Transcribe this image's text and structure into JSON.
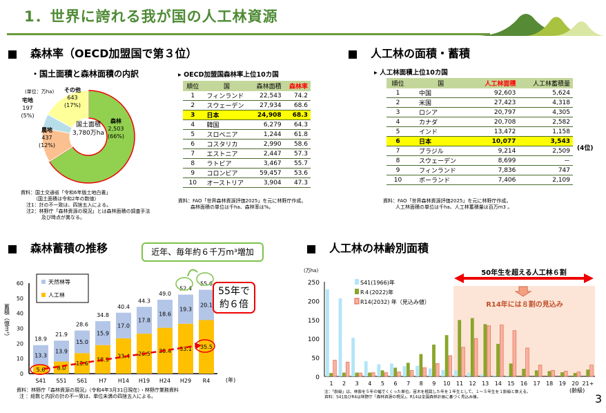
{
  "page": {
    "title": "1．世界に誇れる我が国の人工林資源",
    "page_number": "3"
  },
  "forest_rate": {
    "heading": "森林率（OECD加盟国で第３位）",
    "donut": {
      "subtitle": "・国土面積と森林面積の内訳",
      "unit": "(単位：万ha)",
      "center_label": "国土面積",
      "center_value": "3,780万ha",
      "segments": [
        {
          "name": "森林",
          "value": "2,503",
          "pct": "(66%)",
          "fraction": 0.66,
          "color": "#92d050"
        },
        {
          "name": "農地",
          "value": "437",
          "pct": "(12%)",
          "fraction": 0.12,
          "color": "#fac090"
        },
        {
          "name": "宅地",
          "value": "197",
          "pct": "(5%)",
          "fraction": 0.05,
          "color": "#b7dee8"
        },
        {
          "name": "その他",
          "value": "643",
          "pct": "(17%)",
          "fraction": 0.17,
          "color": "#ffff99"
        }
      ],
      "notes": [
        "資料：国土交通省「令和6年版土地白書」",
        "（国土面積は令和2年の数値）",
        "注1：計の不一致は、四捨五入による。",
        "注2：林野庁「森林資源の現況」とは森林面積の調査手法",
        "及び時点が異なる。"
      ]
    },
    "table": {
      "title": "OECD加盟国森林率上位10カ国",
      "headers": [
        "順位",
        "国",
        "森林面積",
        "森林率"
      ],
      "rows": [
        [
          "1",
          "フィンランド",
          "22,543",
          "74.2"
        ],
        [
          "2",
          "スウェーデン",
          "27,934",
          "68.6"
        ],
        [
          "3",
          "日本",
          "24,908",
          "68.3"
        ],
        [
          "4",
          "韓国",
          "6,279",
          "64.3"
        ],
        [
          "5",
          "スロベニア",
          "1,244",
          "61.8"
        ],
        [
          "6",
          "コスタリカ",
          "2,990",
          "58.6"
        ],
        [
          "7",
          "エストニア",
          "2,447",
          "57.3"
        ],
        [
          "8",
          "ラトビア",
          "3,467",
          "55.7"
        ],
        [
          "9",
          "コロンビア",
          "59,457",
          "53.6"
        ],
        [
          "10",
          "オーストリア",
          "3,904",
          "47.3"
        ]
      ],
      "highlight_rank": "3",
      "notes": [
        "資料：FAO「世界森林資源評価2025」を元に林野庁作成。",
        "森林面積の単位は千ha、森林率は%。"
      ]
    }
  },
  "plantation": {
    "heading": "人工林の面積・蓄積",
    "table": {
      "title": "人工林面積上位10カ国",
      "headers": [
        "順位",
        "国",
        "人工林面積",
        "人工林蓄積量"
      ],
      "rows": [
        [
          "1",
          "中国",
          "92,603",
          "5,624"
        ],
        [
          "2",
          "米国",
          "27,423",
          "4,318"
        ],
        [
          "3",
          "ロシア",
          "20,797",
          "4,305"
        ],
        [
          "4",
          "カナダ",
          "20,708",
          "2,582"
        ],
        [
          "5",
          "インド",
          "13,472",
          "1,158"
        ],
        [
          "6",
          "日本",
          "10,077",
          "3,543"
        ],
        [
          "7",
          "ブラジル",
          "9,214",
          "2,509"
        ],
        [
          "8",
          "スウェーデン",
          "8,699",
          "－"
        ],
        [
          "9",
          "フィンランド",
          "7,836",
          "747"
        ],
        [
          "10",
          "ポーランド",
          "7,406",
          "2,109"
        ]
      ],
      "highlight_rank": "6",
      "japan_rank_note": "(4位)",
      "notes": [
        "資料：FAO「世界森林資源評価2025」を元に林野庁作成。",
        "人工林面積の単位は千ha、人工林蓄積量は百万m3 。"
      ]
    }
  },
  "stock": {
    "heading": "森林蓄積の推移",
    "callout": "近年、毎年約６千万m³増加",
    "redbox": [
      "55年で",
      "約６倍"
    ],
    "notes": [
      "資料：林野庁「森林資源の現況」（令和4年3月31日現在）・林野庁業務資料",
      "注 ：総数と内訳の計の不一致は、単位未満の四捨五入による。"
    ]
  },
  "age": {
    "heading": "人工林の林齢別面積",
    "arrow_label": "50年生を超える人工林６割",
    "forecast_label": "R14年には８割の見込み",
    "notes": [
      "注：「齢級」は、林齢を５年の幅でくくった単位。苗木を植栽した年を１年生として、１～５年生を１齢級と数える。",
      "資料：S41及びR4は林野庁「森林資源の現況」、R14は全国森林計画に基づく見込み値。"
    ]
  },
  "chart_data": [
    {
      "type": "bar",
      "stacked": true,
      "title": "森林蓄積の推移",
      "ylabel": "蓄積（億m³）",
      "xlabel": "(年)",
      "ylim": [
        0,
        60
      ],
      "yticks": [
        "0",
        "10",
        "20",
        "30",
        "40",
        "50",
        "60"
      ],
      "categories": [
        "S41",
        "S51",
        "S61",
        "H7",
        "H14",
        "H19",
        "H24",
        "H29",
        "R4"
      ],
      "series": [
        {
          "name": "人工林",
          "color": "#ffc000",
          "values": [
            5.6,
            8.0,
            13.6,
            18.9,
            23.4,
            26.5,
            30.4,
            33.1,
            35.5
          ]
        },
        {
          "name": "天然林等",
          "color": "#b4c6e7",
          "values": [
            13.3,
            13.9,
            15.0,
            15.9,
            17.0,
            17.8,
            18.6,
            19.3,
            20.1
          ]
        }
      ],
      "totals": [
        "18.9",
        "21.9",
        "28.6",
        "34.8",
        "40.4",
        "44.3",
        "49.0",
        "52.4",
        "55.6"
      ],
      "labels_plant": [
        "5.6",
        "8.0",
        "13.6",
        "18.9",
        "23.4",
        "26.5",
        "30.4",
        "33.1",
        "35.5"
      ],
      "labels_natural": [
        "13.3",
        "13.9",
        "15.0",
        "15.9",
        "17.0",
        "17.8",
        "18.6",
        "19.3",
        "20.1"
      ]
    },
    {
      "type": "bar",
      "title": "人工林の林齢別面積",
      "ylabel": "(万ha)",
      "xlabel": "(齢級)",
      "ylim": [
        0,
        250
      ],
      "yticks": [
        "0",
        "50",
        "100",
        "150",
        "200",
        "250"
      ],
      "categories": [
        "1",
        "2",
        "3",
        "4",
        "5",
        "6",
        "7",
        "8",
        "9",
        "10",
        "11",
        "12",
        "13",
        "14",
        "15",
        "16",
        "17",
        "18",
        "19",
        "20",
        "21+"
      ],
      "series": [
        {
          "name": "S41(1966)年",
          "color": "#b3e5f9",
          "values": [
            230,
            206,
            102,
            40,
            32,
            34,
            27,
            28,
            21,
            17,
            16,
            9,
            5,
            2,
            2,
            0,
            0,
            0,
            0,
            0,
            0
          ]
        },
        {
          "name": "R４(2022)年",
          "color": "#8aa52a",
          "values": [
            9,
            10,
            10,
            10,
            16,
            23,
            36,
            59,
            84,
            109,
            149,
            154,
            138,
            86,
            34,
            20,
            16,
            14,
            11,
            9,
            18
          ]
        },
        {
          "name": "R14(2032) 年（見込み値）",
          "color": "#f7b1a0",
          "values": [
            43,
            38,
            9,
            10,
            10,
            12,
            16,
            23,
            34,
            55,
            77,
            100,
            134,
            136,
            121,
            75,
            30,
            16,
            14,
            12,
            30
          ]
        }
      ]
    }
  ]
}
